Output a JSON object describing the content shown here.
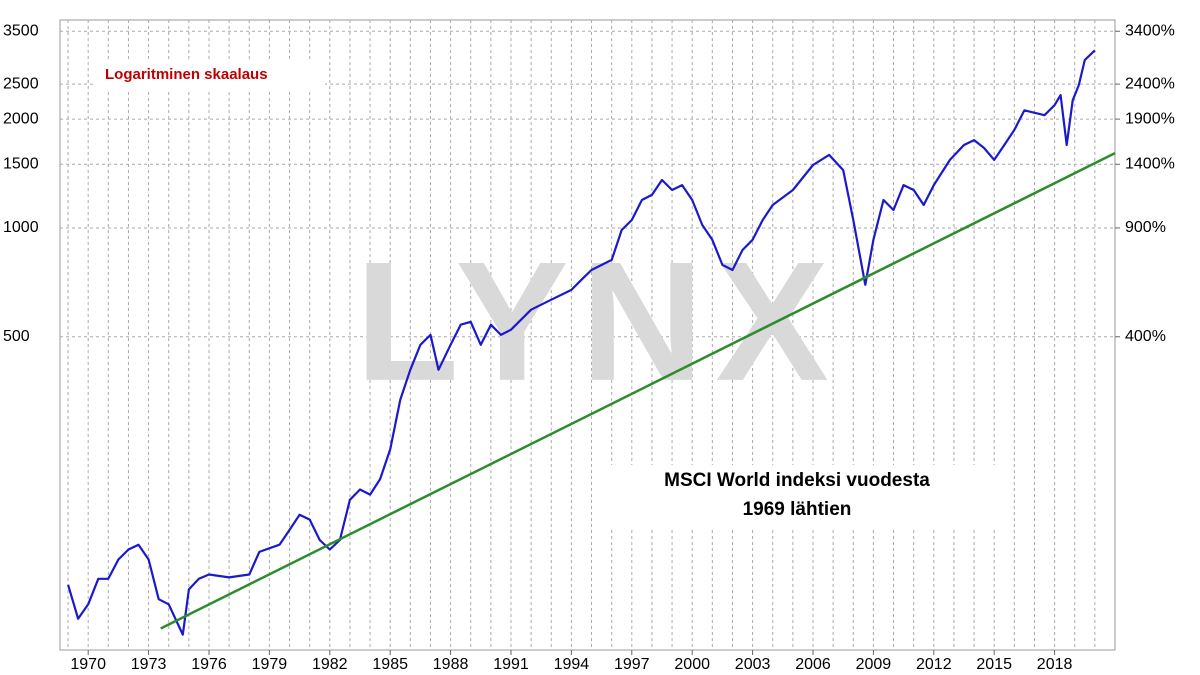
{
  "chart_data": {
    "type": "line",
    "subtitle": "Logaritminen skaalaus",
    "annotation": [
      "MSCI World indeksi vuodesta",
      "1969 lähtien"
    ],
    "watermark": "LYNX",
    "log_scale": true,
    "grid": true,
    "xlim": [
      1968.6,
      2021
    ],
    "xticks": [
      1970,
      1973,
      1976,
      1979,
      1982,
      1985,
      1988,
      1991,
      1994,
      1997,
      2000,
      2003,
      2006,
      2009,
      2012,
      2015,
      2018
    ],
    "x_minor_ticks": [
      1969,
      1970,
      1971,
      1972,
      1973,
      1974,
      1975,
      1976,
      1977,
      1978,
      1979,
      1980,
      1981,
      1982,
      1983,
      1984,
      1985,
      1986,
      1987,
      1988,
      1989,
      1990,
      1991,
      1992,
      1993,
      1994,
      1995,
      1996,
      1997,
      1998,
      1999,
      2000,
      2001,
      2002,
      2003,
      2004,
      2005,
      2006,
      2007,
      2008,
      2009,
      2010,
      2011,
      2012,
      2013,
      2014,
      2015,
      2016,
      2017,
      2018,
      2019,
      2020
    ],
    "ylim": [
      68,
      3760
    ],
    "yticks": [
      500,
      1000,
      1500,
      2000,
      2500,
      3500
    ],
    "y2lim": [
      -32,
      3660
    ],
    "y2ticks": [
      {
        "value": 400,
        "label": "400%"
      },
      {
        "value": 900,
        "label": "900%"
      },
      {
        "value": 1400,
        "label": "1400%"
      },
      {
        "value": 1900,
        "label": "1900%"
      },
      {
        "value": 2400,
        "label": "2400%"
      },
      {
        "value": 3400,
        "label": "3400%"
      }
    ],
    "series": [
      {
        "color": "#1a1acc",
        "x": [
          1969.0,
          1969.5,
          1970.0,
          1970.5,
          1971.0,
          1971.5,
          1972.0,
          1972.5,
          1973.0,
          1973.5,
          1974.0,
          1974.7,
          1975.0,
          1975.5,
          1976.0,
          1977.0,
          1978.0,
          1978.5,
          1979.5,
          1980.0,
          1980.5,
          1981.0,
          1981.5,
          1982.0,
          1982.5,
          1983.0,
          1983.5,
          1984.0,
          1984.5,
          1985.0,
          1985.5,
          1986.0,
          1986.5,
          1987.0,
          1987.4,
          1988.0,
          1988.5,
          1989.0,
          1989.5,
          1990.0,
          1990.5,
          1991.0,
          1992.0,
          1993.0,
          1994.0,
          1994.5,
          1995.0,
          1996.0,
          1996.5,
          1997.0,
          1997.5,
          1998.0,
          1998.5,
          1999.0,
          1999.5,
          2000.0,
          2000.5,
          2001.0,
          2001.5,
          2002.0,
          2002.5,
          2003.0,
          2003.5,
          2004.0,
          2005.0,
          2006.0,
          2006.8,
          2007.5,
          2008.0,
          2008.6,
          2009.0,
          2009.5,
          2010.0,
          2010.5,
          2011.0,
          2011.5,
          2012.0,
          2012.8,
          2013.5,
          2014.0,
          2014.5,
          2015.0,
          2015.5,
          2016.0,
          2016.5,
          2017.5,
          2018.0,
          2018.3,
          2018.6,
          2018.9,
          2019.2,
          2019.5,
          2020.0
        ],
        "values": [
          103,
          83,
          91,
          107,
          107,
          121,
          129,
          133,
          121,
          94,
          91,
          75,
          100,
          107,
          110,
          108,
          110,
          127,
          133,
          146,
          161,
          156,
          137,
          129,
          137,
          177,
          189,
          183,
          202,
          244,
          335,
          405,
          475,
          506,
          405,
          475,
          540,
          550,
          475,
          540,
          506,
          523,
          594,
          633,
          674,
          719,
          765,
          816,
          987,
          1052,
          1195,
          1234,
          1357,
          1273,
          1314,
          1195,
          1019,
          927,
          790,
          765,
          869,
          927,
          1052,
          1157,
          1273,
          1493,
          1592,
          1445,
          1052,
          696,
          927,
          1195,
          1121,
          1314,
          1273,
          1157,
          1314,
          1542,
          1696,
          1750,
          1664,
          1542,
          1696,
          1866,
          2115,
          2051,
          2187,
          2330,
          1696,
          2255,
          2484,
          2915,
          3100
        ]
      },
      {
        "color": "#2e8b2e",
        "x": [
          1973.6,
          2021
        ],
        "values": [
          78,
          1611
        ]
      }
    ]
  }
}
